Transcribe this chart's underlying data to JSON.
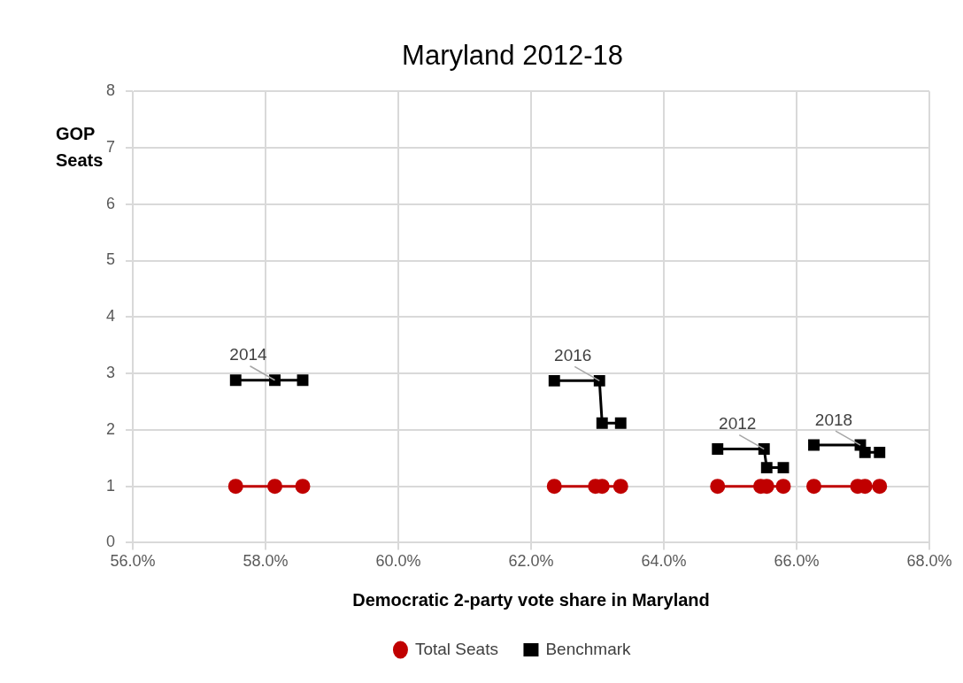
{
  "chart_data": {
    "type": "line",
    "title": "Maryland 2012-18",
    "xlabel": "Democratic 2-party vote share in Maryland",
    "ylabel": "GOP Seats",
    "xlim": [
      56,
      68
    ],
    "xticks": [
      {
        "value": 56,
        "label": "56.0%"
      },
      {
        "value": 58,
        "label": "58.0%"
      },
      {
        "value": 60,
        "label": "60.0%"
      },
      {
        "value": 62,
        "label": "62.0%"
      },
      {
        "value": 64,
        "label": "64.0%"
      },
      {
        "value": 66,
        "label": "66.0%"
      },
      {
        "value": 68,
        "label": "68.0%"
      }
    ],
    "ylim": [
      0,
      8
    ],
    "yticks": [
      0,
      1,
      2,
      3,
      4,
      5,
      6,
      7,
      8
    ],
    "grid": true,
    "legend": "bottom",
    "line_style": "solid",
    "series": [
      {
        "name": "Total Seats",
        "color": "#c00000",
        "marker": "circle",
        "x": [
          57.55,
          58.14,
          58.56,
          null,
          62.35,
          62.97,
          63.07,
          63.35,
          null,
          64.81,
          65.46,
          65.55,
          65.8,
          null,
          66.26,
          66.92,
          67.03,
          67.25
        ],
        "values": [
          1,
          1,
          1,
          null,
          1,
          1,
          1,
          1,
          null,
          1,
          1,
          1,
          1,
          null,
          1,
          1,
          1,
          1
        ]
      },
      {
        "name": "Benchmark",
        "color": "#000000",
        "marker": "square",
        "x": [
          57.55,
          58.14,
          58.56,
          null,
          62.35,
          63.03,
          63.07,
          63.35,
          null,
          64.81,
          65.51,
          65.55,
          65.8,
          null,
          66.26,
          66.96,
          67.03,
          67.25
        ],
        "values": [
          2.88,
          2.88,
          2.88,
          null,
          2.87,
          2.87,
          2.12,
          2.12,
          null,
          1.66,
          1.66,
          1.33,
          1.33,
          null,
          1.73,
          1.73,
          1.6,
          1.6
        ]
      }
    ],
    "annotations": [
      {
        "text": "2014",
        "x": 58.14,
        "y": 2.88
      },
      {
        "text": "2016",
        "x": 63.03,
        "y": 2.87
      },
      {
        "text": "2012",
        "x": 65.51,
        "y": 1.66
      },
      {
        "text": "2018",
        "x": 66.96,
        "y": 1.73
      }
    ]
  }
}
